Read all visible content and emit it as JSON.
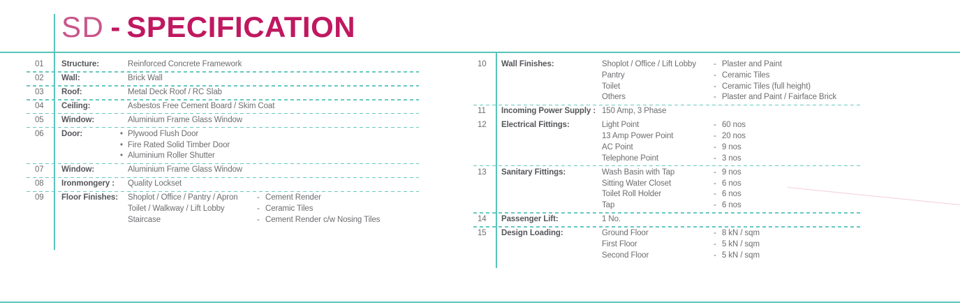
{
  "colors": {
    "teal": "#59c4ba",
    "teal_dash": "#66c9bf",
    "title_sd": "#c9568a",
    "title_main": "#bf1860",
    "label_text": "#55565a",
    "value_text": "#6c6d70",
    "pink_line": "#f4cdd6"
  },
  "title": {
    "prefix": "SD",
    "separator": "-",
    "main": "SPECIFICATION"
  },
  "bullet_glyph": "•",
  "dash_prefix": "-",
  "spec_left": [
    {
      "no": "01",
      "label": "Structure:",
      "value": "Reinforced Concrete Framework",
      "divider": true
    },
    {
      "no": "02",
      "label": "Wall:",
      "value": "Brick Wall",
      "divider": true
    },
    {
      "no": "03",
      "label": "Roof:",
      "value": "Metal Deck Roof / RC Slab",
      "divider": true
    },
    {
      "no": "04",
      "label": "Ceiling:",
      "value": "Asbestos Free Cement Board / Skim Coat",
      "divider": true
    },
    {
      "no": "05",
      "label": "Window:",
      "value": "Aluminium Frame Glass Window",
      "divider": true
    },
    {
      "no": "06",
      "label": "Door:",
      "bullets": [
        "Plywood Flush Door",
        "Fire Rated Solid Timber Door",
        "Aluminium Roller Shutter"
      ],
      "divider": true
    },
    {
      "no": "07",
      "label": "Window:",
      "value": "Aluminium Frame Glass Window",
      "divider": true
    },
    {
      "no": "08",
      "label": "Ironmongery :",
      "value": "Quality Lockset",
      "divider": true
    },
    {
      "no": "09",
      "label": "Floor Finishes:",
      "pairs": [
        {
          "key": "Shoplot / Office / Pantry / Apron",
          "value": "Cement Render"
        },
        {
          "key": "Toilet / Walkway / Lift Lobby",
          "value": "Ceramic Tiles"
        },
        {
          "key": "Staircase",
          "value": "Cement Render c/w Nosing Tiles"
        }
      ],
      "divider": false
    }
  ],
  "spec_right": [
    {
      "no": "10",
      "label": "Wall Finishes:",
      "pairs": [
        {
          "key": "Shoplot / Office / Lift Lobby",
          "value": "Plaster and Paint"
        },
        {
          "key": "Pantry",
          "value": "Ceramic Tiles"
        },
        {
          "key": "Toilet",
          "value": "Ceramic Tiles (full height)"
        },
        {
          "key": "Others",
          "value": "Plaster and Paint / Fairface Brick"
        }
      ],
      "divider": true
    },
    {
      "no": "11",
      "label": "Incoming Power Supply :",
      "value": "150 Amp, 3 Phase",
      "divider": false
    },
    {
      "no": "12",
      "label": "Electrical Fittings:",
      "pairs": [
        {
          "key": "Light Point",
          "value": "60 nos"
        },
        {
          "key": "13 Amp Power Point",
          "value": "20 nos"
        },
        {
          "key": "AC Point",
          "value": "9 nos"
        },
        {
          "key": "Telephone Point",
          "value": "3 nos"
        }
      ],
      "divider": true
    },
    {
      "no": "13",
      "label": "Sanitary Fittings:",
      "pairs": [
        {
          "key": "Wash Basin with Tap",
          "value": "9 nos"
        },
        {
          "key": "Sitting Water Closet",
          "value": "6 nos"
        },
        {
          "key": "Toilet Roll Holder",
          "value": "6 nos"
        },
        {
          "key": "Tap",
          "value": "6 nos"
        }
      ],
      "divider": true
    },
    {
      "no": "14",
      "label": "Passenger Lift:",
      "value": "1 No.",
      "divider": true
    },
    {
      "no": "15",
      "label": "Design Loading:",
      "pairs": [
        {
          "key": "Ground Floor",
          "value": "8 kN / sqm"
        },
        {
          "key": "First Floor",
          "value": "5 kN / sqm"
        },
        {
          "key": "Second Floor",
          "value": "5 kN / sqm"
        }
      ],
      "divider": false
    }
  ]
}
